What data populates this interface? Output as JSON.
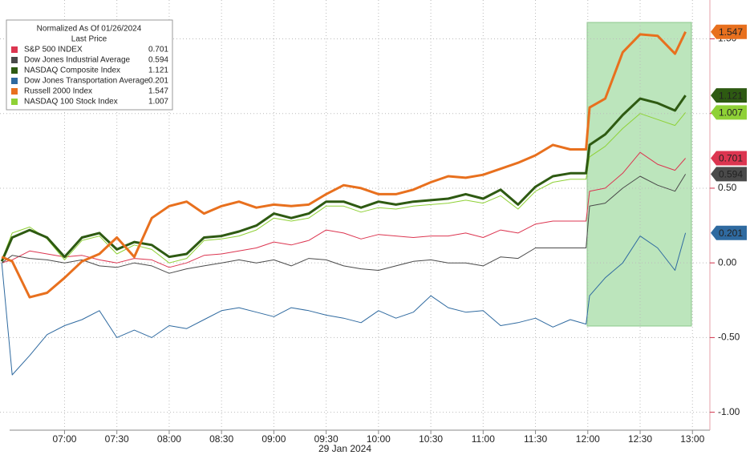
{
  "chart_data": {
    "type": "line",
    "legend_title": "Normalized As Of 01/26/2024",
    "legend_subtitle": "Last Price",
    "x_label": "29 Jan 2024",
    "x": [
      "06:24",
      "06:30",
      "06:40",
      "06:50",
      "07:00",
      "07:10",
      "07:20",
      "07:30",
      "07:40",
      "07:50",
      "08:00",
      "08:10",
      "08:20",
      "08:30",
      "08:40",
      "08:50",
      "09:00",
      "09:10",
      "09:20",
      "09:30",
      "09:40",
      "09:50",
      "10:00",
      "10:10",
      "10:20",
      "10:30",
      "10:40",
      "10:50",
      "11:00",
      "11:10",
      "11:20",
      "11:30",
      "11:40",
      "11:50",
      "11:59",
      "12:01",
      "12:10",
      "12:20",
      "12:30",
      "12:40",
      "12:50",
      "12:56"
    ],
    "xlim": [
      "06:23",
      "13:10"
    ],
    "xticks": [
      "07:00",
      "07:30",
      "08:00",
      "08:30",
      "09:00",
      "09:30",
      "10:00",
      "10:30",
      "11:00",
      "11:30",
      "12:00",
      "12:30",
      "13:00"
    ],
    "ylim": [
      -1.12,
      1.76
    ],
    "yticks": [
      {
        "value": -1,
        "label": "-1.00"
      },
      {
        "value": -0.5,
        "label": "-0.50"
      },
      {
        "value": 0,
        "label": "0.00"
      },
      {
        "value": 0.5,
        "label": "0.50"
      },
      {
        "value": 1,
        "label": "1.00"
      },
      {
        "value": 1.5,
        "label": "1.50"
      }
    ],
    "grid": true,
    "legend": "upper left",
    "series": [
      {
        "name": "S&P 500 INDEX",
        "color": "#dc3550",
        "width": 1,
        "values": [
          0.0,
          0.02,
          0.08,
          0.06,
          0.04,
          0.05,
          0.02,
          0.0,
          0.03,
          0.02,
          -0.03,
          0.0,
          0.05,
          0.06,
          0.08,
          0.1,
          0.14,
          0.12,
          0.15,
          0.22,
          0.2,
          0.16,
          0.19,
          0.18,
          0.17,
          0.18,
          0.18,
          0.2,
          0.17,
          0.22,
          0.2,
          0.26,
          0.28,
          0.28,
          0.28,
          0.48,
          0.5,
          0.6,
          0.74,
          0.66,
          0.62,
          0.701
        ]
      },
      {
        "name": "Dow Jones Industrial Average",
        "color": "#4a4a4a",
        "width": 1,
        "values": [
          0.0,
          0.05,
          0.03,
          0.02,
          0.0,
          0.02,
          -0.02,
          -0.03,
          0.0,
          -0.02,
          -0.07,
          -0.04,
          -0.02,
          0.0,
          0.02,
          0.0,
          0.02,
          -0.02,
          0.03,
          0.02,
          -0.02,
          -0.04,
          -0.05,
          -0.02,
          0.01,
          0.02,
          0.0,
          0.0,
          -0.02,
          0.04,
          0.03,
          0.1,
          0.1,
          0.1,
          0.1,
          0.38,
          0.4,
          0.5,
          0.58,
          0.52,
          0.48,
          0.594
        ]
      },
      {
        "name": "NASDAQ Composite Index",
        "color": "#2e5a12",
        "width": 3,
        "values": [
          0.01,
          0.17,
          0.22,
          0.17,
          0.04,
          0.17,
          0.2,
          0.09,
          0.14,
          0.12,
          0.04,
          0.06,
          0.17,
          0.18,
          0.21,
          0.25,
          0.33,
          0.3,
          0.33,
          0.41,
          0.41,
          0.37,
          0.41,
          0.39,
          0.41,
          0.42,
          0.43,
          0.46,
          0.43,
          0.49,
          0.39,
          0.51,
          0.58,
          0.6,
          0.6,
          0.79,
          0.86,
          0.99,
          1.1,
          1.07,
          1.02,
          1.121
        ]
      },
      {
        "name": "Dow Jones Transportation Average",
        "color": "#2f6aa0",
        "width": 1,
        "values": [
          0.0,
          -0.75,
          -0.62,
          -0.48,
          -0.42,
          -0.38,
          -0.32,
          -0.5,
          -0.45,
          -0.5,
          -0.42,
          -0.44,
          -0.38,
          -0.32,
          -0.3,
          -0.33,
          -0.36,
          -0.3,
          -0.32,
          -0.35,
          -0.37,
          -0.4,
          -0.32,
          -0.37,
          -0.33,
          -0.22,
          -0.3,
          -0.33,
          -0.32,
          -0.42,
          -0.4,
          -0.37,
          -0.43,
          -0.38,
          -0.41,
          -0.22,
          -0.1,
          0.0,
          0.18,
          0.1,
          -0.05,
          0.201
        ]
      },
      {
        "name": "Russell 2000 Index",
        "color": "#e8701e",
        "width": 3,
        "values": [
          0.04,
          0.01,
          -0.23,
          -0.2,
          -0.1,
          0.01,
          0.06,
          0.17,
          0.04,
          0.3,
          0.38,
          0.41,
          0.33,
          0.38,
          0.41,
          0.37,
          0.39,
          0.38,
          0.39,
          0.46,
          0.52,
          0.5,
          0.46,
          0.46,
          0.49,
          0.54,
          0.58,
          0.57,
          0.59,
          0.63,
          0.67,
          0.72,
          0.79,
          0.76,
          0.76,
          1.04,
          1.1,
          1.41,
          1.53,
          1.52,
          1.4,
          1.547
        ]
      },
      {
        "name": "NASDAQ 100 Stock Index",
        "color": "#8fd136",
        "width": 1,
        "values": [
          0.02,
          0.2,
          0.24,
          0.16,
          0.02,
          0.15,
          0.18,
          0.06,
          0.12,
          0.09,
          0.0,
          0.03,
          0.15,
          0.16,
          0.18,
          0.22,
          0.3,
          0.28,
          0.3,
          0.38,
          0.38,
          0.34,
          0.37,
          0.36,
          0.38,
          0.39,
          0.4,
          0.42,
          0.4,
          0.45,
          0.36,
          0.48,
          0.54,
          0.56,
          0.56,
          0.71,
          0.78,
          0.9,
          1.0,
          0.96,
          0.92,
          1.007
        ]
      }
    ]
  }
}
